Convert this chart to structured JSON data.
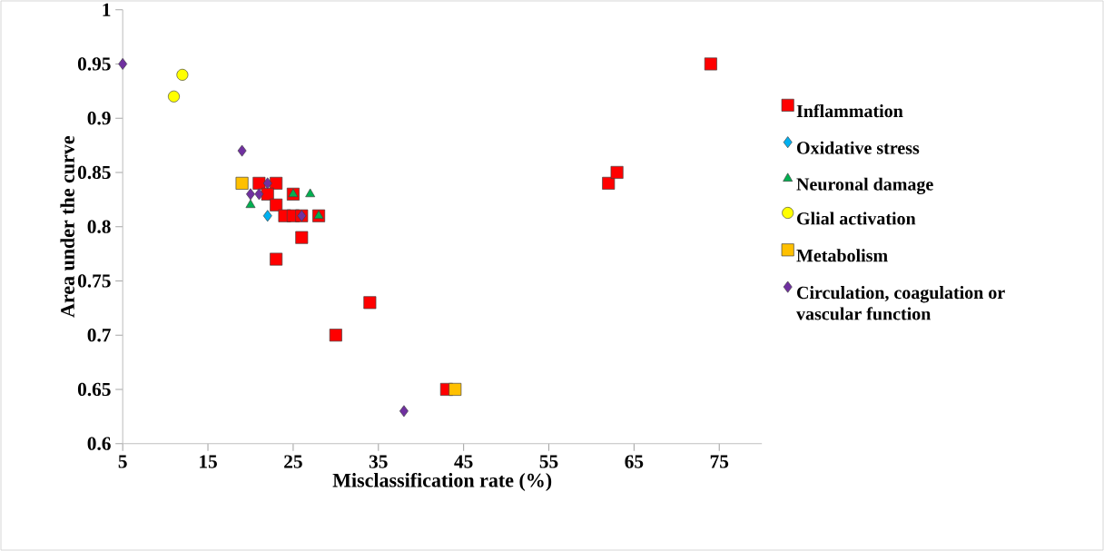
{
  "chart_data": {
    "type": "scatter",
    "xlabel": "Misclassification rate (%)",
    "ylabel": "Area under the curve",
    "xlim": [
      5,
      80
    ],
    "ylim": [
      0.6,
      1
    ],
    "xticks": [
      5,
      15,
      25,
      35,
      45,
      55,
      65,
      75
    ],
    "yticks": [
      0.6,
      0.65,
      0.7,
      0.75,
      0.8,
      0.85,
      0.9,
      0.95,
      1
    ],
    "grid": false,
    "legend": "right",
    "series": [
      {
        "name": "Inflammation",
        "color": "#ff0000",
        "marker": "square",
        "x": [
          21,
          23,
          22,
          25,
          23,
          24,
          25,
          26,
          28,
          26,
          23,
          30,
          34,
          43,
          62,
          63,
          74
        ],
        "values": [
          0.84,
          0.84,
          0.83,
          0.83,
          0.82,
          0.81,
          0.81,
          0.81,
          0.81,
          0.79,
          0.77,
          0.7,
          0.73,
          0.65,
          0.84,
          0.85,
          0.95
        ]
      },
      {
        "name": "Oxidative stress",
        "color": "#00b0f0",
        "marker": "diamond",
        "x": [
          22
        ],
        "values": [
          0.81
        ]
      },
      {
        "name": "Neuronal damage",
        "color": "#00b050",
        "marker": "triangle",
        "x": [
          25,
          27,
          20,
          28
        ],
        "values": [
          0.83,
          0.83,
          0.82,
          0.81
        ]
      },
      {
        "name": "Glial activation",
        "color": "#ffff00",
        "marker": "circle",
        "x": [
          12,
          11
        ],
        "values": [
          0.94,
          0.92
        ]
      },
      {
        "name": "Metabolism",
        "color": "#ffc000",
        "marker": "square",
        "x": [
          19,
          44
        ],
        "values": [
          0.84,
          0.65
        ]
      },
      {
        "name": "Circulation, coagulation or vascular function",
        "color": "#7030a0",
        "marker": "diamond",
        "x": [
          5,
          19,
          22,
          20,
          21,
          26,
          38
        ],
        "values": [
          0.95,
          0.87,
          0.84,
          0.83,
          0.83,
          0.81,
          0.63
        ]
      }
    ]
  }
}
